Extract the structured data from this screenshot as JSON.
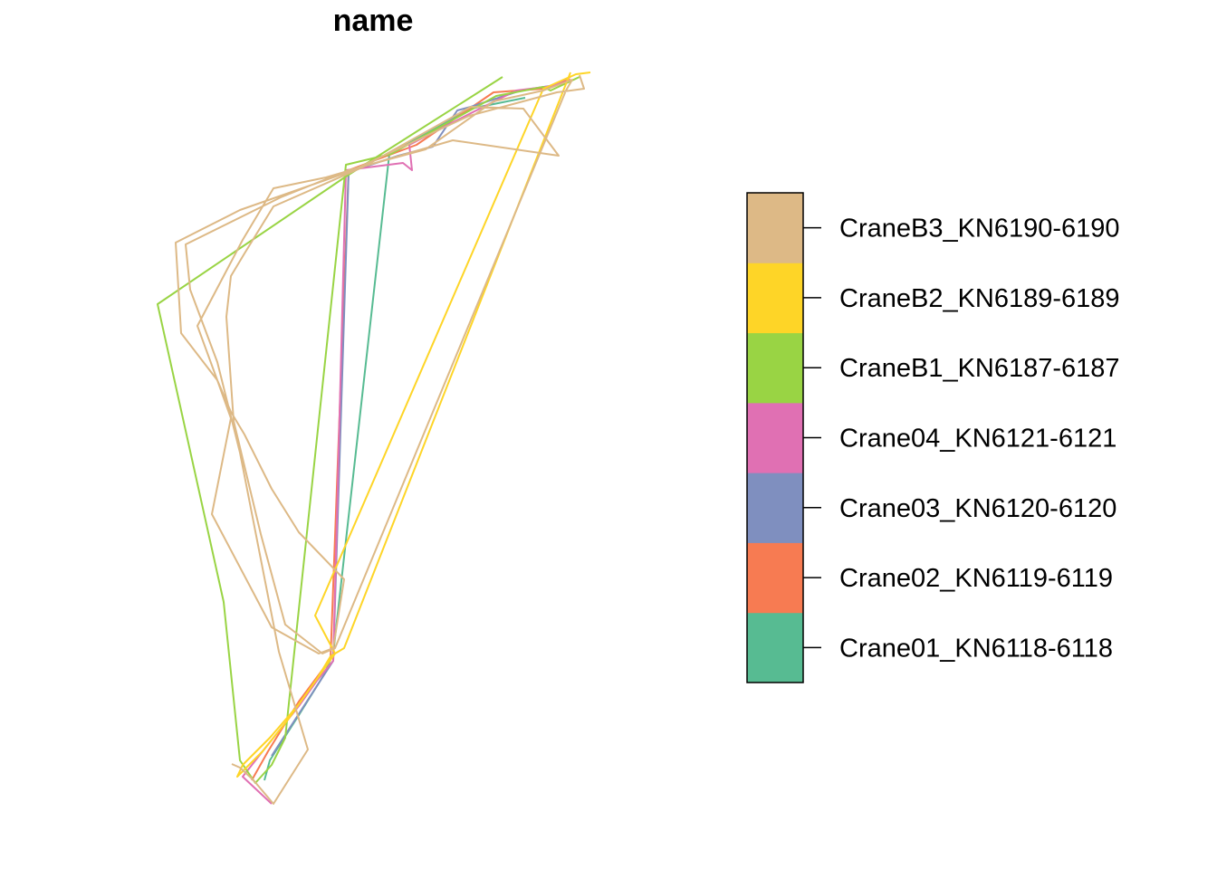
{
  "chart_data": {
    "type": "line",
    "title": "name",
    "xlabel": "",
    "ylabel": "",
    "axes": "none",
    "grid": false,
    "legend_position": "right",
    "legend_style": "colorbar",
    "series": [
      {
        "name": "Crane01_KN6118-6118",
        "color": "#57BB92",
        "points": [
          [
            292,
            862
          ],
          [
            298,
            840
          ],
          [
            330,
            790
          ],
          [
            358,
            745
          ],
          [
            368,
            722
          ],
          [
            430,
            170
          ],
          [
            520,
            120
          ],
          [
            580,
            108
          ]
        ]
      },
      {
        "name": "Crane02_KN6119-6119",
        "color": "#F77B52",
        "points": [
          [
            630,
            88
          ],
          [
            600,
            98
          ],
          [
            545,
            102
          ],
          [
            460,
            160
          ],
          [
            385,
            188
          ],
          [
            365,
            728
          ],
          [
            330,
            775
          ],
          [
            296,
            830
          ],
          [
            278,
            862
          ]
        ]
      },
      {
        "name": "Crane03_KN6120-6120",
        "color": "#7F8FBF",
        "points": [
          [
            626,
            92
          ],
          [
            575,
            100
          ],
          [
            520,
            118
          ],
          [
            505,
            122
          ],
          [
            478,
            162
          ],
          [
            440,
            172
          ],
          [
            385,
            190
          ],
          [
            368,
            730
          ],
          [
            300,
            835
          ]
        ]
      },
      {
        "name": "Crane04_KN6121-6121",
        "color": "#E070B3",
        "points": [
          [
            300,
            888
          ],
          [
            268,
            858
          ],
          [
            290,
            830
          ],
          [
            330,
            780
          ],
          [
            350,
            752
          ],
          [
            368,
            730
          ],
          [
            382,
            188
          ],
          [
            445,
            180
          ],
          [
            455,
            188
          ],
          [
            452,
            160
          ],
          [
            520,
            125
          ],
          [
            570,
            100
          ],
          [
            610,
            95
          ],
          [
            630,
            85
          ]
        ]
      },
      {
        "name": "CraneB1_KN6187-6187",
        "color": "#99D444",
        "points": [
          [
            555,
            85
          ],
          [
            382,
            195
          ],
          [
            174,
            336
          ],
          [
            247,
            665
          ],
          [
            265,
            840
          ],
          [
            282,
            865
          ],
          [
            300,
            845
          ],
          [
            315,
            815
          ],
          [
            382,
            182
          ],
          [
            432,
            170
          ],
          [
            548,
            106
          ],
          [
            600,
            96
          ],
          [
            608,
            100
          ],
          [
            640,
            85
          ]
        ]
      },
      {
        "name": "CraneB2_KN6189-6189",
        "color": "#FED527",
        "points": [
          [
            652,
            80
          ],
          [
            636,
            82
          ],
          [
            600,
            98
          ],
          [
            348,
            680
          ],
          [
            370,
            722
          ],
          [
            330,
            778
          ],
          [
            298,
            815
          ],
          [
            268,
            845
          ],
          [
            262,
            858
          ],
          [
            290,
            830
          ],
          [
            318,
            795
          ],
          [
            350,
            750
          ],
          [
            365,
            725
          ],
          [
            380,
            716
          ],
          [
            630,
            80
          ]
        ]
      },
      {
        "name": "CraneB3_KN6190-6190",
        "color": "#DDB986",
        "points": [
          [
            640,
            83
          ],
          [
            645,
            98
          ],
          [
            615,
            102
          ],
          [
            518,
            128
          ],
          [
            385,
            190
          ],
          [
            265,
            232
          ],
          [
            194,
            268
          ],
          [
            200,
            368
          ],
          [
            240,
            420
          ],
          [
            255,
            462
          ],
          [
            234,
            568
          ],
          [
            300,
            693
          ],
          [
            352,
            722
          ],
          [
            368,
            716
          ],
          [
            380,
            640
          ],
          [
            330,
            588
          ],
          [
            300,
            540
          ],
          [
            270,
            480
          ],
          [
            255,
            455
          ],
          [
            240,
            420
          ],
          [
            218,
            360
          ],
          [
            268,
            265
          ],
          [
            302,
            208
          ],
          [
            360,
            196
          ],
          [
            500,
            155
          ],
          [
            617,
            172
          ],
          [
            578,
            120
          ],
          [
            520,
            118
          ],
          [
            400,
            185
          ],
          [
            302,
            228
          ],
          [
            270,
            280
          ],
          [
            255,
            305
          ],
          [
            250,
            350
          ],
          [
            258,
            465
          ],
          [
            288,
            590
          ],
          [
            315,
            690
          ],
          [
            356,
            722
          ],
          [
            370,
            716
          ],
          [
            625,
            100
          ],
          [
            632,
            88
          ],
          [
            600,
            100
          ],
          [
            545,
            112
          ],
          [
            470,
            165
          ],
          [
            385,
            188
          ],
          [
            310,
            218
          ],
          [
            205,
            270
          ],
          [
            210,
            320
          ],
          [
            240,
            400
          ],
          [
            265,
            500
          ],
          [
            308,
            720
          ],
          [
            340,
            828
          ],
          [
            302,
            888
          ],
          [
            280,
            862
          ],
          [
            265,
            848
          ],
          [
            256,
            844
          ]
        ]
      }
    ]
  }
}
